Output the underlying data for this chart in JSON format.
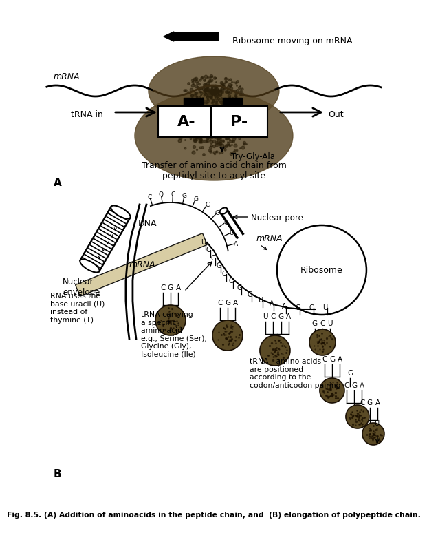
{
  "title_A": "Ribosome moving on mRNA",
  "label_mRNA": "mRNA",
  "label_tRNA_in": "tRNA in",
  "label_out": "Out",
  "label_A": "A-",
  "label_P": "P-",
  "label_try": "Try-Gly-Ala",
  "label_transfer": "Transfer of amino acid chain from\npeptidyl site to acyl site",
  "label_A_marker": "A",
  "label_B_marker": "B",
  "label_DNA": "DNA",
  "label_nuclear_pore": "Nuclear pore",
  "label_mRNA2": "mRNA",
  "label_ribosome": "Ribosome",
  "label_nuclear_envelope": "Nuclear\nenvelope",
  "label_rna_uses": "RNA uses the\nbase uracil (U)\ninstead of\nthymine (T)",
  "label_trna_carrying": "tRNA carrying\na specific\namino acid\ne.g., Serine (Ser),\nGlycine (Gly),\nIsoleucine (Ile)",
  "label_trna_amino": "tRNA - amino acids\nare positioned\naccording to the\ncodon/anticodon pairing",
  "caption": "Fig. 8.5. (A) Addition of aminoacids in the peptide chain, and  (B) elongation of polypeptide chain.",
  "bg_color": "#ffffff"
}
